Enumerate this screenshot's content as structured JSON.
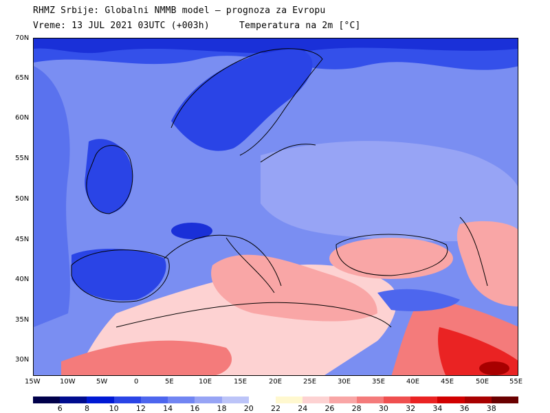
{
  "header": {
    "line1": "RHMZ Srbije: Globalni NMMB model — prognoza za Evropu",
    "line2": "Vreme: 13 JUL 2021 03UTC (+003h)",
    "line2b": "Temperatura na 2m [°C]"
  },
  "map": {
    "lat_labels": [
      "70N",
      "65N",
      "60N",
      "55N",
      "50N",
      "45N",
      "40N",
      "35N",
      "30N"
    ],
    "lon_labels": [
      "15W",
      "10W",
      "5W",
      "0",
      "5E",
      "10E",
      "15E",
      "20E",
      "25E",
      "30E",
      "35E",
      "40E",
      "45E",
      "50E",
      "55E"
    ]
  },
  "legend": {
    "colors": [
      "#00004a",
      "#000c8e",
      "#0019d4",
      "#2a44e6",
      "#4d66ee",
      "#7185f2",
      "#97a4f5",
      "#bcc4f8",
      "#ffffff",
      "#fff8cf",
      "#fdd2d2",
      "#f9a6a6",
      "#f47b7b",
      "#ef4f4f",
      "#ea2323",
      "#d10000",
      "#a80000",
      "#6a0000"
    ],
    "ticks": [
      "6",
      "8",
      "10",
      "12",
      "14",
      "16",
      "18",
      "20",
      "22",
      "24",
      "26",
      "28",
      "30",
      "32",
      "34",
      "36",
      "38"
    ]
  }
}
